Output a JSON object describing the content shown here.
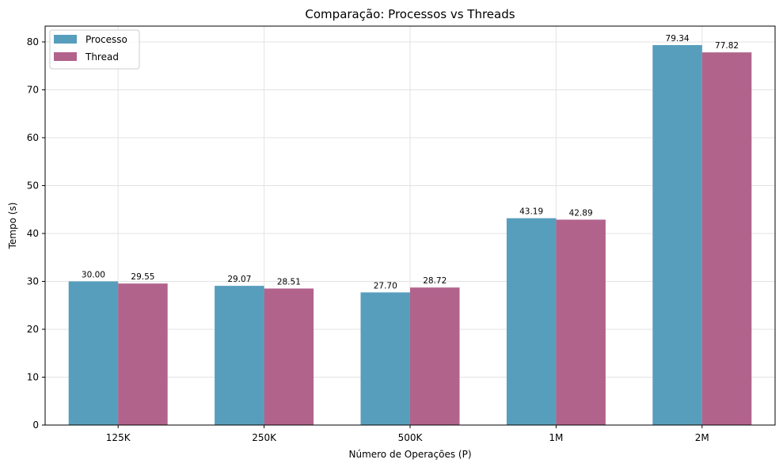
{
  "chart_data": {
    "type": "bar",
    "title": "Comparação: Processos vs Threads",
    "xlabel": "Número de Operações (P)",
    "ylabel": "Tempo (s)",
    "categories": [
      "125K",
      "250K",
      "500K",
      "1M",
      "2M"
    ],
    "series": [
      {
        "name": "Processo",
        "values": [
          30.0,
          29.07,
          27.7,
          43.19,
          79.34
        ],
        "color": "#579ebd"
      },
      {
        "name": "Thread",
        "values": [
          29.55,
          28.51,
          28.72,
          42.89,
          77.82
        ],
        "color": "#b2638c"
      }
    ],
    "data_labels": [
      [
        "30.00",
        "29.07",
        "27.70",
        "43.19",
        "79.34"
      ],
      [
        "29.55",
        "28.51",
        "28.72",
        "42.89",
        "77.82"
      ]
    ],
    "ylim": [
      0,
      83.3
    ],
    "yticks": [
      0,
      10,
      20,
      30,
      40,
      50,
      60,
      70,
      80
    ],
    "ytick_labels": [
      "0",
      "10",
      "20",
      "30",
      "40",
      "50",
      "60",
      "70",
      "80"
    ],
    "grid": true,
    "legend_position": "top-left"
  }
}
